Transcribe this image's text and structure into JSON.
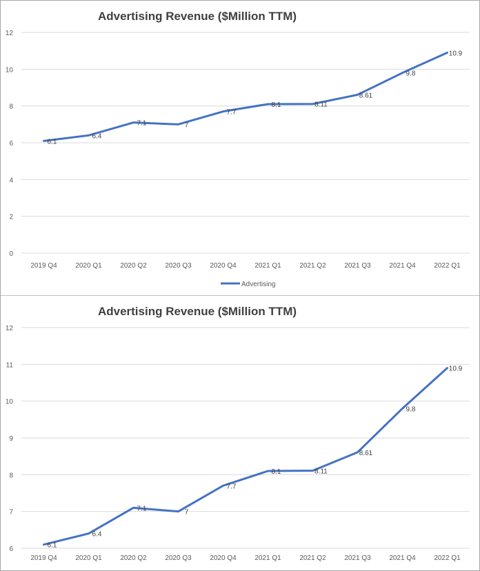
{
  "chart_data": [
    {
      "type": "line",
      "title": "Advertising Revenue ($Million TTM)",
      "categories": [
        "2019 Q4",
        "2020 Q1",
        "2020 Q2",
        "2020 Q3",
        "2020 Q4",
        "2021 Q1",
        "2021 Q2",
        "2021 Q3",
        "2021 Q4",
        "2022 Q1"
      ],
      "series": [
        {
          "name": "Advertising",
          "values": [
            6.1,
            6.4,
            7.1,
            7,
            7.7,
            8.1,
            8.11,
            8.61,
            9.8,
            10.9
          ],
          "labels": [
            "6.1",
            "6.4",
            "7.1",
            "7",
            "7.7",
            "8.1",
            "8.11",
            "8.61",
            "9.8",
            "10.9"
          ],
          "color": "#4472c4"
        }
      ],
      "ylim": [
        0,
        12
      ],
      "yticks": [
        "0",
        "2",
        "4",
        "6",
        "8",
        "10",
        "12"
      ],
      "grid": true,
      "legend": "bottom"
    },
    {
      "type": "line",
      "title": "Advertising Revenue ($Million TTM)",
      "categories": [
        "2019 Q4",
        "2020 Q1",
        "2020 Q2",
        "2020 Q3",
        "2020 Q4",
        "2021 Q1",
        "2021 Q2",
        "2021 Q3",
        "2021 Q4",
        "2022 Q1"
      ],
      "series": [
        {
          "values": [
            6.1,
            6.4,
            7.1,
            7,
            7.7,
            8.1,
            8.11,
            8.61,
            9.8,
            10.9
          ],
          "labels": [
            "6.1",
            "6.4",
            "7.1",
            "7",
            "7.7",
            "8.1",
            "8.11",
            "8.61",
            "9.8",
            "10.9"
          ],
          "color": "#4472c4"
        }
      ],
      "ylim": [
        6,
        12
      ],
      "yticks": [
        "6",
        "7",
        "8",
        "9",
        "10",
        "11",
        "12"
      ],
      "grid": true,
      "legend": "none"
    }
  ]
}
